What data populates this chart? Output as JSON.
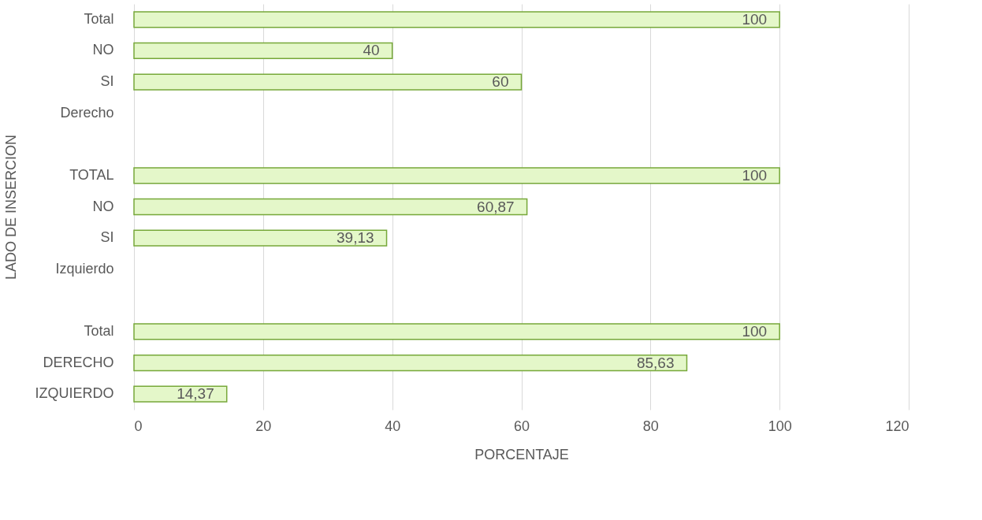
{
  "chart_data": {
    "type": "bar",
    "orientation": "horizontal",
    "xlabel": "PORCENTAJE",
    "ylabel": "LADO DE INSERCION",
    "categories": [
      "Total",
      "NO",
      "SI",
      "Derecho",
      null,
      "TOTAL",
      "NO",
      "SI",
      "Izquierdo",
      null,
      "Total",
      "DERECHO",
      "IZQUIERDO"
    ],
    "series": [
      {
        "color": "#e4f7c9",
        "values": [
          100,
          40,
          60,
          null,
          null,
          100,
          60.87,
          39.13,
          null,
          null,
          100,
          85.63,
          14.37
        ],
        "value_labels": [
          "100",
          "40",
          "60",
          null,
          null,
          "100",
          "60,87",
          "39,13",
          null,
          null,
          "100",
          "85,63",
          "14,37"
        ]
      }
    ],
    "xlim": [
      0,
      120
    ],
    "xticks": [
      0,
      20,
      40,
      60,
      80,
      100,
      120
    ],
    "grid": "x"
  }
}
